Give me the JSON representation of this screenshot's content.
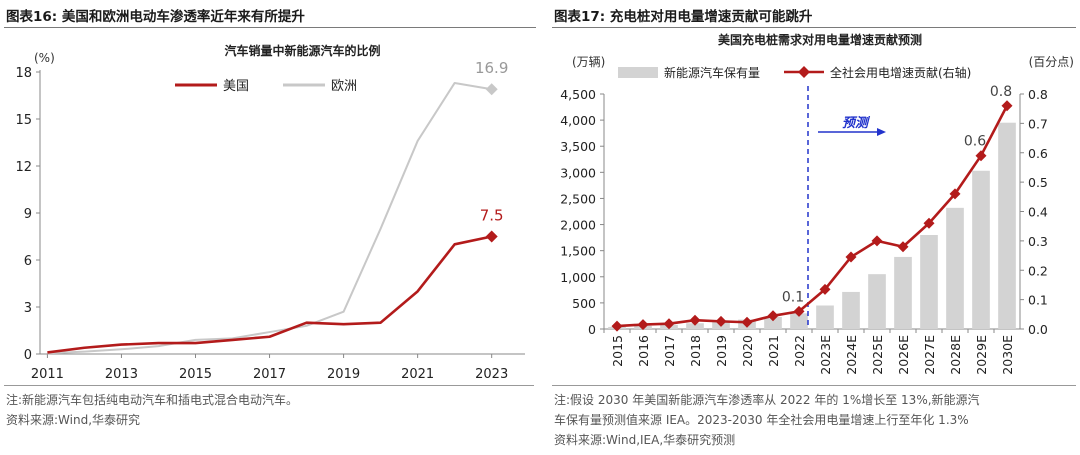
{
  "panel16": {
    "title": "图表16:  美国和欧洲电动车渗透率近年来有所提升",
    "notes": [
      "注:新能源汽车包括纯电动汽车和插电式混合电动汽车。",
      "资料来源:Wind,华泰研究"
    ]
  },
  "panel17": {
    "title": "图表17:  充电桩对用电量增速贡献可能跳升",
    "notes": [
      "注:假设 2030 年美国新能源汽车渗透率从 2022 年的 1%增长至 13%,新能源汽",
      "车保有量预测值来源 IEA。2023-2030 年全社会用电量增速上行至年化 1.3%",
      "资料来源:Wind,IEA,华泰研究预测"
    ]
  },
  "chart_data": [
    {
      "type": "line",
      "title": "汽车销量中新能源汽车的比例",
      "ylabel": "(%)",
      "ylim": [
        0,
        18
      ],
      "yticks": [
        0,
        3,
        6,
        9,
        12,
        15,
        18
      ],
      "xlim": [
        2010.8,
        2023.9
      ],
      "xticks": [
        2011,
        2013,
        2015,
        2017,
        2019,
        2021,
        2023
      ],
      "legend": "top-right",
      "series": [
        {
          "name": "美国",
          "color": "#b31b1b",
          "x": [
            2011,
            2012,
            2013,
            2014,
            2015,
            2016,
            2017,
            2018,
            2019,
            2020,
            2021,
            2022,
            2023
          ],
          "values": [
            0.1,
            0.4,
            0.6,
            0.7,
            0.7,
            0.9,
            1.1,
            2.0,
            1.9,
            2.0,
            4.0,
            7.0,
            7.5
          ],
          "end_label": "7.5"
        },
        {
          "name": "欧洲",
          "color": "#c8c8c8",
          "x": [
            2011,
            2012,
            2013,
            2014,
            2015,
            2016,
            2017,
            2018,
            2019,
            2020,
            2021,
            2022,
            2023
          ],
          "values": [
            0.05,
            0.15,
            0.3,
            0.5,
            0.9,
            1.0,
            1.4,
            1.8,
            2.7,
            8.0,
            13.6,
            17.3,
            16.9
          ],
          "end_label": "16.9"
        }
      ]
    },
    {
      "type": "bar",
      "title": "美国充电桩需求对用电量增速贡献预测",
      "ylabel_left": "(万辆)",
      "ylabel_right": "(百分点)",
      "ylim_left": [
        0,
        4500
      ],
      "ylim_right": [
        0,
        0.8
      ],
      "yticks_left": [
        "0",
        "500",
        "1,000",
        "1,500",
        "2,000",
        "2,500",
        "3,000",
        "3,500",
        "4,000",
        "4,500"
      ],
      "yticks_right": [
        "0.0",
        "0.1",
        "0.2",
        "0.3",
        "0.4",
        "0.5",
        "0.6",
        "0.7",
        "0.8"
      ],
      "legend": "top",
      "categories": [
        "2015",
        "2016",
        "2017",
        "2018",
        "2019",
        "2020",
        "2021",
        "2022",
        "2023E",
        "2024E",
        "2025E",
        "2026E",
        "2027E",
        "2028E",
        "2029E",
        "2030E"
      ],
      "forecast_label": "预测",
      "series": [
        {
          "name": "新能源汽车保有量",
          "axis": "left",
          "color": "#d3d3d3",
          "values": [
            40,
            60,
            80,
            110,
            140,
            180,
            230,
            300,
            450,
            710,
            1050,
            1380,
            1800,
            2320,
            3030,
            3950
          ]
        },
        {
          "name": "全社会用电增速贡献(右轴)",
          "axis": "right",
          "color": "#b31b1b",
          "values": [
            0.01,
            0.015,
            0.018,
            0.03,
            0.026,
            0.023,
            0.045,
            0.06,
            0.135,
            0.245,
            0.3,
            0.28,
            0.36,
            0.46,
            0.59,
            0.76
          ],
          "point_labels": {
            "7": "0.1",
            "14": "0.6",
            "15": "0.8"
          }
        }
      ]
    }
  ]
}
